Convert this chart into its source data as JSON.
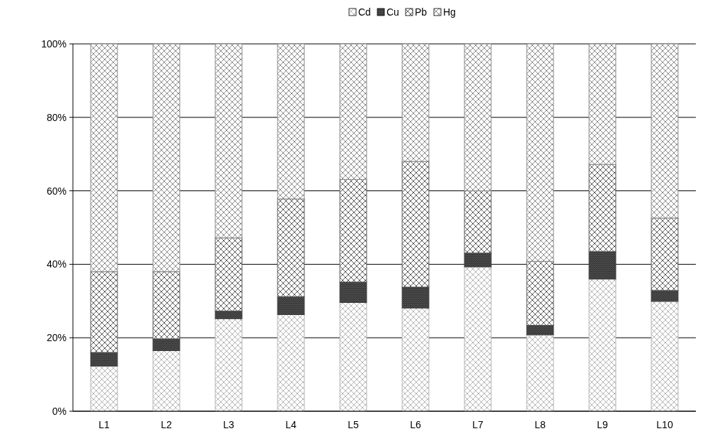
{
  "chart_data": {
    "type": "bar",
    "stacked": true,
    "categories": [
      "L1",
      "L2",
      "L3",
      "L4",
      "L5",
      "L6",
      "L7",
      "L8",
      "L9",
      "L10"
    ],
    "series": [
      {
        "name": "Cd",
        "color": "#b4b4b4",
        "values": [
          12.3,
          16.5,
          25.2,
          26.3,
          29.6,
          28.1,
          39.3,
          20.8,
          36,
          29.9
        ]
      },
      {
        "name": "Cu",
        "color": "#3c3c3c",
        "values": [
          3.7,
          3.2,
          2.1,
          4.9,
          5.6,
          5.7,
          3.8,
          2.6,
          7.5,
          3
        ]
      },
      {
        "name": "Pb",
        "color": "#5a5a5a",
        "values": [
          22,
          18.3,
          19.9,
          26.6,
          27.9,
          34.2,
          16.9,
          17.4,
          23.7,
          19.7
        ]
      },
      {
        "name": "Hg",
        "color": "#8a8a8a",
        "values": [
          62,
          62,
          52.8,
          42.2,
          36.9,
          32,
          40,
          59.2,
          32.8,
          47.4
        ]
      }
    ],
    "ylim": [
      0,
      100
    ],
    "yticks": [
      {
        "value": 0,
        "label": "0%"
      },
      {
        "value": 20,
        "label": "20%"
      },
      {
        "value": 40,
        "label": "40%"
      },
      {
        "value": 60,
        "label": "60%"
      },
      {
        "value": 80,
        "label": "80%"
      },
      {
        "value": 100,
        "label": "100%"
      }
    ],
    "grid": "y",
    "legend": "top"
  }
}
